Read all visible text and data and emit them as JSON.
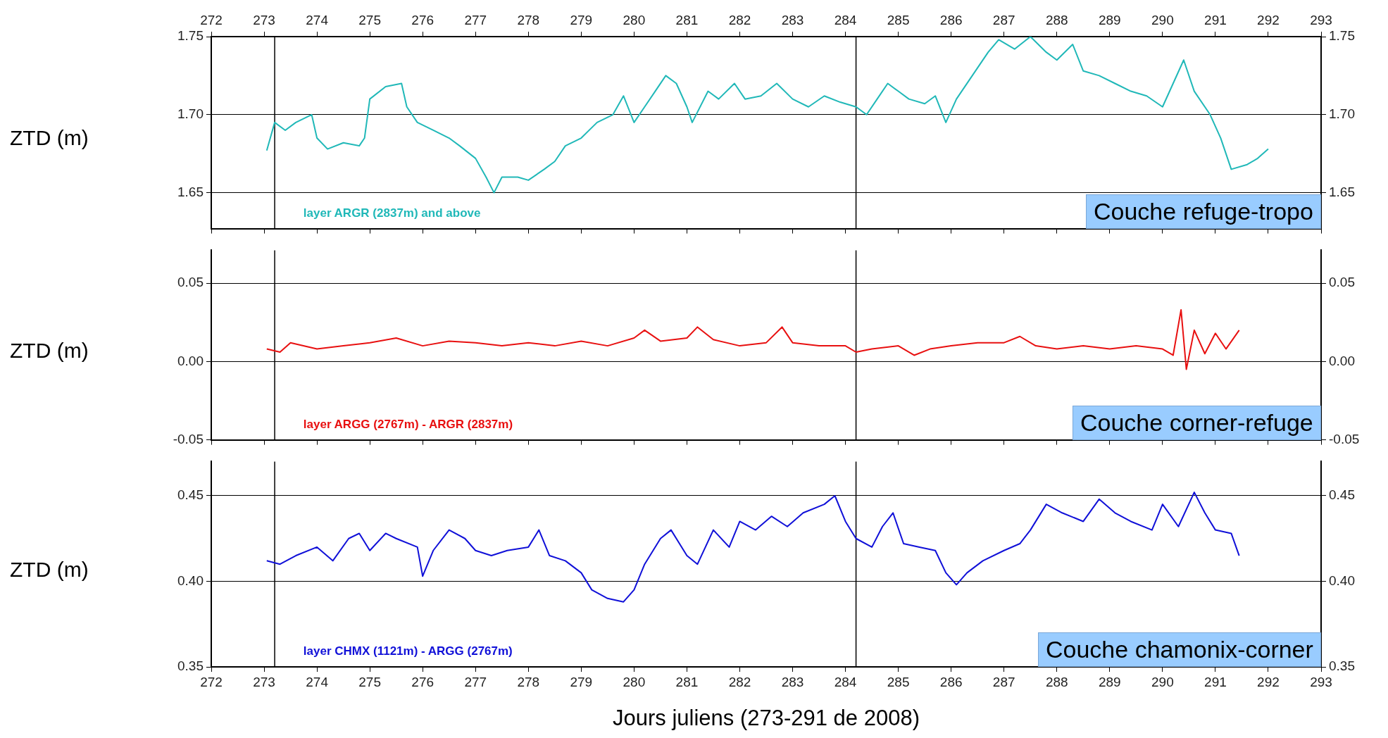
{
  "chart_data": [
    {
      "type": "line",
      "ylabel": "ZTD (m)",
      "legend": false,
      "grid": "y",
      "tick_labels": "y",
      "xlim": [
        272,
        293
      ],
      "xticks": [
        272,
        273,
        274,
        275,
        276,
        277,
        278,
        279,
        280,
        281,
        282,
        283,
        284,
        285,
        286,
        287,
        288,
        289,
        290,
        291,
        292,
        293
      ],
      "x2lim": [
        272,
        293
      ],
      "x2ticks": [
        272,
        273,
        274,
        275,
        276,
        277,
        278,
        279,
        280,
        281,
        282,
        283,
        284,
        285,
        286,
        287,
        288,
        289,
        290,
        291,
        292,
        293
      ],
      "ylim": [
        1.627,
        1.75
      ],
      "yticks": [
        {
          "value": 1.65,
          "label": "1.65"
        },
        {
          "value": 1.7,
          "label": "1.70"
        },
        {
          "value": 1.75,
          "label": "1.75"
        }
      ],
      "y2lim": [
        1.627,
        1.75
      ],
      "y2ticks": [
        {
          "value": 1.65,
          "label": "1.65"
        },
        {
          "value": 1.7,
          "label": "1.70"
        },
        {
          "value": 1.75,
          "label": "1.75"
        }
      ],
      "ref_lines": [
        {
          "axis": "x",
          "value": 273.2,
          "color": "#000000"
        },
        {
          "axis": "x",
          "value": 284.2,
          "color": "#000000"
        }
      ],
      "annotations": [
        "layer ARGR (2837m) and above",
        "Couche refuge-tropo"
      ],
      "x": [
        273.05,
        273.2,
        273.4,
        273.6,
        273.9,
        274.0,
        274.2,
        274.5,
        274.8,
        274.9,
        275.0,
        275.3,
        275.6,
        275.7,
        275.9,
        276.2,
        276.5,
        276.7,
        277.0,
        277.2,
        277.35,
        277.5,
        277.8,
        278.0,
        278.3,
        278.5,
        278.7,
        279.0,
        279.3,
        279.6,
        279.8,
        280.0,
        280.2,
        280.4,
        280.6,
        280.8,
        281.0,
        281.1,
        281.4,
        281.6,
        281.9,
        282.1,
        282.4,
        282.7,
        283.0,
        283.3,
        283.6,
        283.9,
        284.2,
        284.4,
        284.6,
        284.8,
        285.0,
        285.2,
        285.5,
        285.7,
        285.9,
        286.1,
        286.4,
        286.7,
        286.9,
        287.2,
        287.5,
        287.8,
        288.0,
        288.3,
        288.5,
        288.8,
        289.1,
        289.4,
        289.7,
        290.0,
        290.2,
        290.4,
        290.6,
        290.9,
        291.1,
        291.3,
        291.6,
        291.8,
        292.0
      ],
      "series": [
        {
          "color": "#20b8b8",
          "values": [
            1.677,
            1.695,
            1.69,
            1.695,
            1.7,
            1.685,
            1.678,
            1.682,
            1.68,
            1.685,
            1.71,
            1.718,
            1.72,
            1.705,
            1.695,
            1.69,
            1.685,
            1.68,
            1.672,
            1.66,
            1.65,
            1.66,
            1.66,
            1.658,
            1.665,
            1.67,
            1.68,
            1.685,
            1.695,
            1.7,
            1.712,
            1.695,
            1.705,
            1.715,
            1.725,
            1.72,
            1.705,
            1.695,
            1.715,
            1.71,
            1.72,
            1.71,
            1.712,
            1.72,
            1.71,
            1.705,
            1.712,
            1.708,
            1.705,
            1.7,
            1.71,
            1.72,
            1.715,
            1.71,
            1.707,
            1.712,
            1.695,
            1.71,
            1.725,
            1.74,
            1.748,
            1.742,
            1.75,
            1.74,
            1.735,
            1.745,
            1.728,
            1.725,
            1.72,
            1.715,
            1.712,
            1.705,
            1.72,
            1.735,
            1.715,
            1.7,
            1.685,
            1.665,
            1.668,
            1.672,
            1.678
          ]
        }
      ]
    },
    {
      "type": "line",
      "ylabel": "ZTD (m)",
      "legend": false,
      "grid": "y",
      "tick_labels": "y",
      "xlim": [
        272,
        293
      ],
      "xticks": [
        272,
        273,
        274,
        275,
        276,
        277,
        278,
        279,
        280,
        281,
        282,
        283,
        284,
        285,
        286,
        287,
        288,
        289,
        290,
        291,
        292,
        293
      ],
      "ylim": [
        -0.05,
        0.071
      ],
      "yticks": [
        {
          "value": -0.05,
          "label": "-0.05"
        },
        {
          "value": 0,
          "label": "0.00"
        },
        {
          "value": 0.05,
          "label": "0.05"
        }
      ],
      "y2lim": [
        -0.05,
        0.071
      ],
      "y2ticks": [
        {
          "value": -0.05,
          "label": "-0.05"
        },
        {
          "value": 0,
          "label": "0.00"
        },
        {
          "value": 0.05,
          "label": "0.05"
        }
      ],
      "ref_lines": [
        {
          "axis": "x",
          "value": 273.2,
          "color": "#000000"
        },
        {
          "axis": "x",
          "value": 284.2,
          "color": "#000000"
        }
      ],
      "annotations": [
        "layer ARGG (2767m) - ARGR (2837m)",
        "Couche corner-refuge"
      ],
      "x": [
        273.05,
        273.3,
        273.5,
        274,
        274.5,
        275,
        275.5,
        276,
        276.5,
        277,
        277.5,
        278,
        278.5,
        279,
        279.5,
        280,
        280.2,
        280.5,
        281,
        281.2,
        281.5,
        282,
        282.5,
        282.8,
        283,
        283.5,
        284,
        284.2,
        284.5,
        285,
        285.3,
        285.6,
        286,
        286.5,
        287,
        287.3,
        287.6,
        288,
        288.5,
        289,
        289.5,
        290,
        290.2,
        290.35,
        290.45,
        290.6,
        290.8,
        291.0,
        291.2,
        291.45
      ],
      "series": [
        {
          "color": "#e81010",
          "values": [
            0.008,
            0.006,
            0.012,
            0.008,
            0.01,
            0.012,
            0.015,
            0.01,
            0.013,
            0.012,
            0.01,
            0.012,
            0.01,
            0.013,
            0.01,
            0.015,
            0.02,
            0.013,
            0.015,
            0.022,
            0.014,
            0.01,
            0.012,
            0.022,
            0.012,
            0.01,
            0.01,
            0.006,
            0.008,
            0.01,
            0.004,
            0.008,
            0.01,
            0.012,
            0.012,
            0.016,
            0.01,
            0.008,
            0.01,
            0.008,
            0.01,
            0.008,
            0.004,
            0.033,
            -0.005,
            0.02,
            0.005,
            0.018,
            0.008,
            0.02
          ]
        }
      ]
    },
    {
      "type": "line",
      "ylabel": "ZTD (m)",
      "xlabel": "Jours juliens (273-291 de 2008)",
      "legend": false,
      "grid": "y",
      "xlim": [
        272,
        293
      ],
      "xticks": [
        272,
        273,
        274,
        275,
        276,
        277,
        278,
        279,
        280,
        281,
        282,
        283,
        284,
        285,
        286,
        287,
        288,
        289,
        290,
        291,
        292,
        293
      ],
      "ylim": [
        0.35,
        0.47
      ],
      "yticks": [
        {
          "value": 0.35,
          "label": "0.35"
        },
        {
          "value": 0.4,
          "label": "0.40"
        },
        {
          "value": 0.45,
          "label": "0.45"
        }
      ],
      "y2lim": [
        0.35,
        0.47
      ],
      "y2ticks": [
        {
          "value": 0.35,
          "label": "0.35"
        },
        {
          "value": 0.4,
          "label": "0.40"
        },
        {
          "value": 0.45,
          "label": "0.45"
        }
      ],
      "ref_lines": [
        {
          "axis": "x",
          "value": 273.2,
          "color": "#000000"
        },
        {
          "axis": "x",
          "value": 284.2,
          "color": "#000000"
        }
      ],
      "annotations": [
        "layer CHMX (1121m) - ARGG (2767m)",
        "Couche chamonix-corner"
      ],
      "x": [
        273.05,
        273.3,
        273.6,
        274,
        274.3,
        274.6,
        274.8,
        275,
        275.3,
        275.5,
        275.9,
        276.0,
        276.2,
        276.5,
        276.8,
        277.0,
        277.3,
        277.6,
        278,
        278.2,
        278.4,
        278.7,
        279.0,
        279.2,
        279.5,
        279.8,
        280.0,
        280.2,
        280.5,
        280.7,
        281.0,
        281.2,
        281.5,
        281.8,
        282.0,
        282.3,
        282.6,
        282.9,
        283.2,
        283.6,
        283.8,
        284.0,
        284.2,
        284.5,
        284.7,
        284.9,
        285.1,
        285.4,
        285.7,
        285.9,
        286.1,
        286.3,
        286.6,
        287,
        287.3,
        287.5,
        287.8,
        288.1,
        288.5,
        288.8,
        289.1,
        289.4,
        289.8,
        290.0,
        290.3,
        290.6,
        290.8,
        291.0,
        291.3,
        291.45
      ],
      "series": [
        {
          "color": "#1010d8",
          "values": [
            0.412,
            0.41,
            0.415,
            0.42,
            0.412,
            0.425,
            0.428,
            0.418,
            0.428,
            0.425,
            0.42,
            0.403,
            0.418,
            0.43,
            0.425,
            0.418,
            0.415,
            0.418,
            0.42,
            0.43,
            0.415,
            0.412,
            0.405,
            0.395,
            0.39,
            0.388,
            0.395,
            0.41,
            0.425,
            0.43,
            0.415,
            0.41,
            0.43,
            0.42,
            0.435,
            0.43,
            0.438,
            0.432,
            0.44,
            0.445,
            0.45,
            0.435,
            0.425,
            0.42,
            0.432,
            0.44,
            0.422,
            0.42,
            0.418,
            0.405,
            0.398,
            0.405,
            0.412,
            0.418,
            0.422,
            0.43,
            0.445,
            0.44,
            0.435,
            0.448,
            0.44,
            0.435,
            0.43,
            0.445,
            0.432,
            0.452,
            0.44,
            0.43,
            0.428,
            0.415
          ]
        }
      ]
    }
  ]
}
